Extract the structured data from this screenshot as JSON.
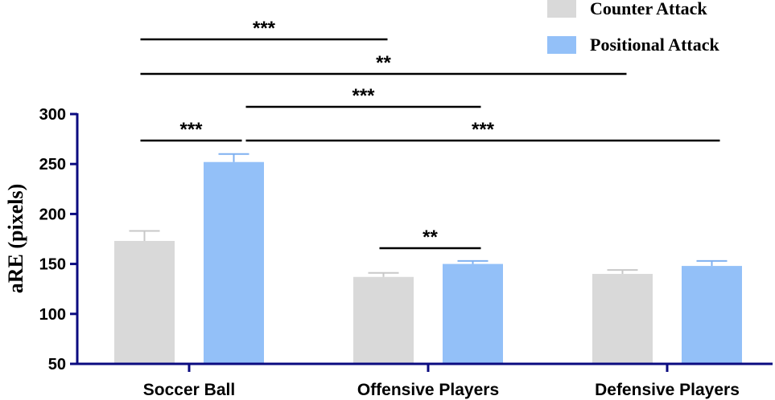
{
  "chart_data": {
    "type": "bar",
    "title": "",
    "xlabel": "",
    "ylabel": "aRE (pixels)",
    "ylim": [
      50,
      300
    ],
    "yticks": [
      50,
      100,
      150,
      200,
      250,
      300
    ],
    "categories": [
      "Soccer Ball",
      "Offensive Players",
      "Defensive Players"
    ],
    "series": [
      {
        "name": "Counter Attack",
        "color": "#d9d9d9",
        "errColor": "#c8c8c8",
        "values": [
          173,
          137,
          140
        ],
        "errors": [
          10,
          4,
          4
        ]
      },
      {
        "name": "Positional Attack",
        "color": "#93c0f8",
        "errColor": "#7fb0f0",
        "values": [
          252,
          150,
          148
        ],
        "errors": [
          8,
          3,
          5
        ]
      }
    ],
    "significance": [
      {
        "label": "***",
        "from": {
          "category": 0,
          "series": 0
        },
        "to": {
          "category": 0,
          "series": 1
        }
      },
      {
        "label": "**",
        "from": {
          "category": 1,
          "series": 0
        },
        "to": {
          "category": 1,
          "series": 1
        }
      },
      {
        "label": "***",
        "from": {
          "category": 0,
          "series": 1
        },
        "to": {
          "category": 2,
          "series": 1
        }
      },
      {
        "label": "***",
        "from": {
          "category": 0,
          "series": 1
        },
        "to": {
          "category": 1,
          "series": 1
        }
      },
      {
        "label": "**",
        "from": {
          "category": 0,
          "series": 0
        },
        "to": {
          "category": 2,
          "series": 0
        }
      },
      {
        "label": "***",
        "from": {
          "category": 0,
          "series": 0
        },
        "to": {
          "category": 1,
          "series": 0
        }
      }
    ],
    "legend_position": "top-right",
    "axis_color": "#0b0b80"
  }
}
